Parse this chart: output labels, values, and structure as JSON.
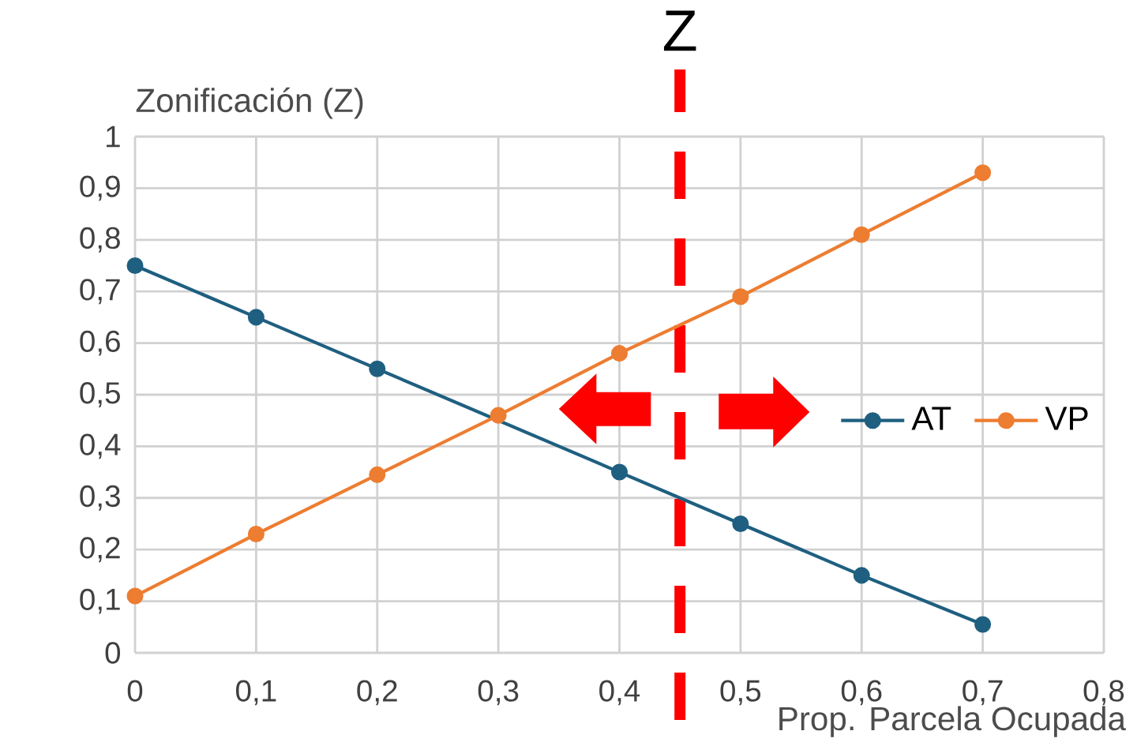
{
  "chart_data": {
    "type": "line",
    "xlabel": "Prop. Parcela Ocupada",
    "ylabel": "Zonificación (Z)",
    "x": [
      0,
      0.1,
      0.2,
      0.3,
      0.4,
      0.5,
      0.6,
      0.7
    ],
    "series": [
      {
        "name": "AT",
        "color": "#1f5f80",
        "values": [
          0.75,
          0.65,
          0.55,
          null,
          0.35,
          0.25,
          0.15,
          0.055
        ]
      },
      {
        "name": "VP",
        "color": "#ed7d31",
        "values": [
          0.11,
          0.23,
          0.345,
          0.46,
          0.58,
          0.69,
          0.81,
          0.93
        ]
      }
    ],
    "xlim": [
      0,
      0.8
    ],
    "xticks": [
      0,
      {
        "value": 0.1,
        "label": "0,1"
      },
      {
        "value": 0.2,
        "label": "0,2"
      },
      {
        "value": 0.3,
        "label": "0,3"
      },
      {
        "value": 0.4,
        "label": "0,4"
      },
      {
        "value": 0.5,
        "label": "0,5"
      },
      {
        "value": 0.6,
        "label": "0,6"
      },
      {
        "value": 0.7,
        "label": "0,7"
      },
      {
        "value": 0.8,
        "label": "0,8"
      }
    ],
    "ylim": [
      0,
      1
    ],
    "yticks": [
      0,
      {
        "value": 0.1,
        "label": "0,1"
      },
      {
        "value": 0.2,
        "label": "0,2"
      },
      {
        "value": 0.3,
        "label": "0,3"
      },
      {
        "value": 0.4,
        "label": "0,4"
      },
      {
        "value": 0.5,
        "label": "0,5"
      },
      {
        "value": 0.6,
        "label": "0,6"
      },
      {
        "value": 0.7,
        "label": "0,7"
      },
      {
        "value": 0.8,
        "label": "0,8"
      },
      {
        "value": 0.9,
        "label": "0,9"
      },
      1
    ],
    "ref_lines": [
      {
        "axis": "x",
        "value": 0.45,
        "label": "Z",
        "color": "#ff0000",
        "line_style": "dashed"
      }
    ],
    "grid": true,
    "legend": "right",
    "marker": "circle",
    "line_style": "solid"
  }
}
